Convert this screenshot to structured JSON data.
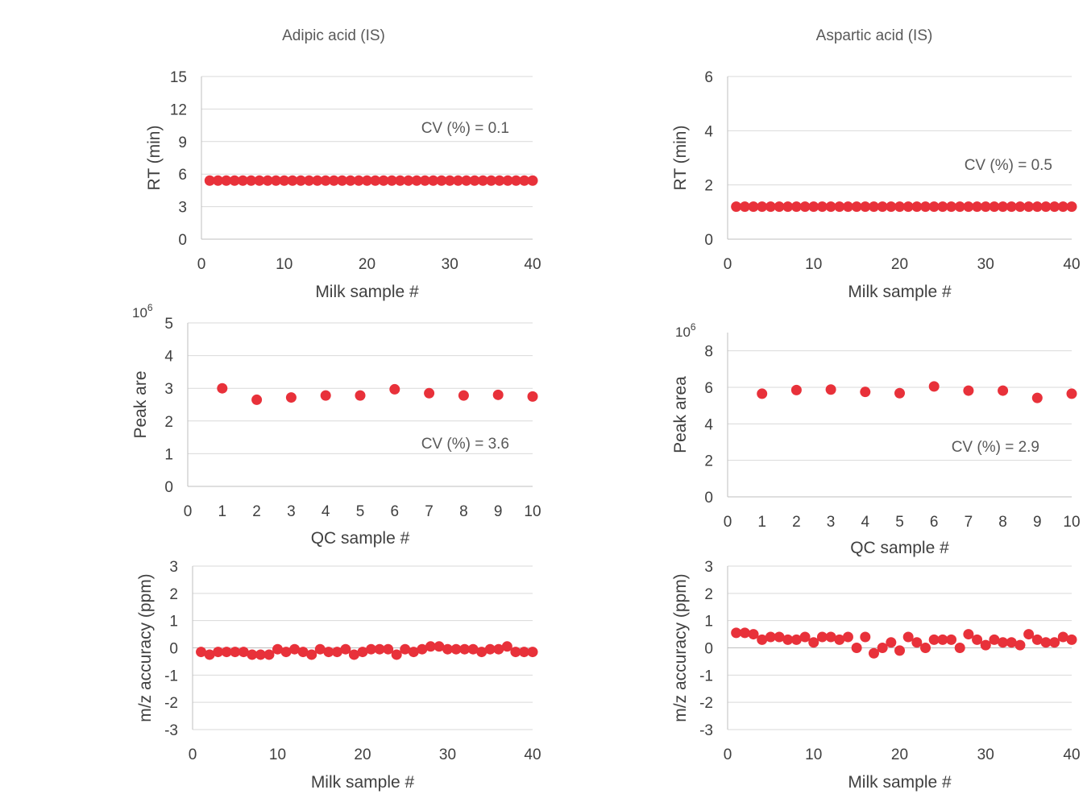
{
  "figure": {
    "column_titles": [
      "Adipic acid (IS)",
      "Aspartic acid (IS)"
    ]
  },
  "colors": {
    "marker": "#e8313a",
    "grid": "#d9d9d9",
    "axis": "#bfbfbf",
    "text": "#595959",
    "label": "#404040"
  },
  "chart_data": [
    {
      "id": "adipic-rt",
      "type": "scatter",
      "title": "Adipic acid (IS)",
      "xlabel": "Milk sample #",
      "ylabel": "RT (min)",
      "xlim": [
        0,
        40
      ],
      "ylim": [
        0,
        15
      ],
      "xticks": [
        0,
        10,
        20,
        30,
        40
      ],
      "yticks": [
        0,
        3,
        6,
        9,
        12,
        15
      ],
      "grid": true,
      "annotation": "CV (%) = 0.1",
      "x": [
        1,
        2,
        3,
        4,
        5,
        6,
        7,
        8,
        9,
        10,
        11,
        12,
        13,
        14,
        15,
        16,
        17,
        18,
        19,
        20,
        21,
        22,
        23,
        24,
        25,
        26,
        27,
        28,
        29,
        30,
        31,
        32,
        33,
        34,
        35,
        36,
        37,
        38,
        39,
        40
      ],
      "y": [
        5.4,
        5.4,
        5.4,
        5.4,
        5.4,
        5.4,
        5.4,
        5.4,
        5.4,
        5.4,
        5.4,
        5.4,
        5.4,
        5.4,
        5.4,
        5.4,
        5.4,
        5.4,
        5.4,
        5.4,
        5.4,
        5.4,
        5.4,
        5.4,
        5.4,
        5.4,
        5.4,
        5.4,
        5.4,
        5.4,
        5.4,
        5.4,
        5.4,
        5.4,
        5.4,
        5.4,
        5.4,
        5.4,
        5.4,
        5.4
      ]
    },
    {
      "id": "aspartic-rt",
      "type": "scatter",
      "title": "Aspartic acid (IS)",
      "xlabel": "Milk sample #",
      "ylabel": "RT (min)",
      "xlim": [
        0,
        40
      ],
      "ylim": [
        0,
        6
      ],
      "xticks": [
        0,
        10,
        20,
        30,
        40
      ],
      "yticks": [
        0,
        2,
        4,
        6
      ],
      "grid": true,
      "annotation": "CV (%) = 0.5",
      "x": [
        1,
        2,
        3,
        4,
        5,
        6,
        7,
        8,
        9,
        10,
        11,
        12,
        13,
        14,
        15,
        16,
        17,
        18,
        19,
        20,
        21,
        22,
        23,
        24,
        25,
        26,
        27,
        28,
        29,
        30,
        31,
        32,
        33,
        34,
        35,
        36,
        37,
        38,
        39,
        40
      ],
      "y": [
        1.2,
        1.2,
        1.2,
        1.2,
        1.2,
        1.2,
        1.2,
        1.2,
        1.2,
        1.2,
        1.2,
        1.2,
        1.2,
        1.2,
        1.2,
        1.2,
        1.2,
        1.2,
        1.2,
        1.2,
        1.2,
        1.2,
        1.2,
        1.2,
        1.2,
        1.2,
        1.2,
        1.2,
        1.2,
        1.2,
        1.2,
        1.2,
        1.2,
        1.2,
        1.2,
        1.2,
        1.2,
        1.2,
        1.2,
        1.2
      ]
    },
    {
      "id": "adipic-area",
      "type": "scatter",
      "xlabel": "QC sample #",
      "ylabel": "Peak are",
      "exponent_label": "10",
      "exponent_power": "6",
      "xlim": [
        0,
        10
      ],
      "ylim": [
        0,
        5
      ],
      "xticks": [
        0,
        1,
        2,
        3,
        4,
        5,
        6,
        7,
        8,
        9,
        10
      ],
      "yticks": [
        0,
        1,
        2,
        3,
        4,
        5
      ],
      "grid": true,
      "annotation": "CV (%) = 3.6",
      "x": [
        1,
        2,
        3,
        4,
        5,
        6,
        7,
        8,
        9,
        10
      ],
      "y": [
        3.0,
        2.65,
        2.72,
        2.78,
        2.78,
        2.97,
        2.85,
        2.78,
        2.8,
        2.75
      ]
    },
    {
      "id": "aspartic-area",
      "type": "scatter",
      "xlabel": "QC sample #",
      "ylabel": "Peak area",
      "exponent_label": "10",
      "exponent_power": "6",
      "xlim": [
        0,
        10
      ],
      "ylim": [
        0,
        9
      ],
      "xticks": [
        0,
        1,
        2,
        3,
        4,
        5,
        6,
        7,
        8,
        9,
        10
      ],
      "yticks": [
        0,
        2,
        4,
        6,
        8
      ],
      "grid": true,
      "annotation": "CV (%) = 2.9",
      "x": [
        1,
        2,
        3,
        4,
        5,
        6,
        7,
        8,
        9,
        10
      ],
      "y": [
        5.65,
        5.85,
        5.88,
        5.75,
        5.68,
        6.05,
        5.82,
        5.82,
        5.42,
        5.65
      ]
    },
    {
      "id": "adipic-mz",
      "type": "scatter",
      "xlabel": "Milk sample #",
      "ylabel": "m/z accuracy (ppm)",
      "xlim": [
        0,
        40
      ],
      "ylim": [
        -3,
        3
      ],
      "xticks": [
        0,
        10,
        20,
        30,
        40
      ],
      "yticks": [
        -3,
        -2,
        -1,
        0,
        1,
        2,
        3
      ],
      "grid": true,
      "x": [
        1,
        2,
        3,
        4,
        5,
        6,
        7,
        8,
        9,
        10,
        11,
        12,
        13,
        14,
        15,
        16,
        17,
        18,
        19,
        20,
        21,
        22,
        23,
        24,
        25,
        26,
        27,
        28,
        29,
        30,
        31,
        32,
        33,
        34,
        35,
        36,
        37,
        38,
        39,
        40
      ],
      "y": [
        -0.15,
        -0.25,
        -0.15,
        -0.15,
        -0.15,
        -0.15,
        -0.25,
        -0.25,
        -0.25,
        -0.05,
        -0.15,
        -0.05,
        -0.15,
        -0.25,
        -0.05,
        -0.15,
        -0.15,
        -0.05,
        -0.25,
        -0.15,
        -0.05,
        -0.05,
        -0.05,
        -0.25,
        -0.05,
        -0.15,
        -0.05,
        0.05,
        0.05,
        -0.05,
        -0.05,
        -0.05,
        -0.05,
        -0.15,
        -0.05,
        -0.05,
        0.05,
        -0.15,
        -0.15,
        -0.15
      ]
    },
    {
      "id": "aspartic-mz",
      "type": "scatter",
      "xlabel": "Milk sample #",
      "ylabel": "m/z accuracy (ppm)",
      "xlim": [
        0,
        40
      ],
      "ylim": [
        -3,
        3
      ],
      "xticks": [
        0,
        10,
        20,
        30,
        40
      ],
      "yticks": [
        -3,
        -2,
        -1,
        0,
        1,
        2,
        3
      ],
      "grid": true,
      "x": [
        1,
        2,
        3,
        4,
        5,
        6,
        7,
        8,
        9,
        10,
        11,
        12,
        13,
        14,
        15,
        16,
        17,
        18,
        19,
        20,
        21,
        22,
        23,
        24,
        25,
        26,
        27,
        28,
        29,
        30,
        31,
        32,
        33,
        34,
        35,
        36,
        37,
        38,
        39,
        40
      ],
      "y": [
        0.55,
        0.55,
        0.5,
        0.3,
        0.4,
        0.4,
        0.3,
        0.3,
        0.4,
        0.2,
        0.4,
        0.4,
        0.3,
        0.4,
        0.0,
        0.4,
        -0.2,
        0.0,
        0.2,
        -0.1,
        0.4,
        0.2,
        0.0,
        0.3,
        0.3,
        0.3,
        0.0,
        0.5,
        0.3,
        0.1,
        0.3,
        0.2,
        0.2,
        0.1,
        0.5,
        0.3,
        0.2,
        0.2,
        0.4,
        0.3
      ]
    }
  ]
}
